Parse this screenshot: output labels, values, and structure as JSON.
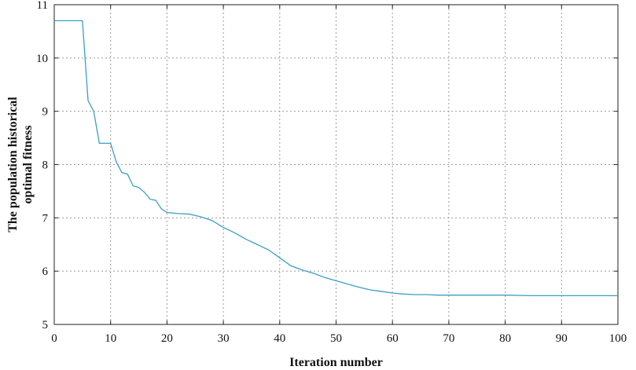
{
  "chart_data": {
    "type": "line",
    "title": "",
    "xlabel": "Iteration number",
    "ylabel_lines": [
      "The population historical",
      "optimal fitness"
    ],
    "xlim": [
      0,
      100
    ],
    "ylim": [
      5,
      11
    ],
    "xticks": [
      0,
      10,
      20,
      30,
      40,
      50,
      60,
      70,
      80,
      90,
      100
    ],
    "yticks": [
      5,
      6,
      7,
      8,
      9,
      10,
      11
    ],
    "grid": true,
    "line_color": "#3a9fc4",
    "series": [
      {
        "x": [
          0,
          1,
          2,
          3,
          4,
          5,
          6,
          6.5,
          7,
          7.5,
          8,
          8.5,
          9,
          9.5,
          10,
          11,
          12,
          13,
          14,
          15,
          16,
          17,
          18,
          19,
          20,
          22,
          24,
          26,
          28,
          30,
          32,
          34,
          36,
          38,
          40,
          42,
          44,
          46,
          48,
          50,
          52,
          54,
          56,
          58,
          60,
          62,
          64,
          66,
          68,
          70,
          75,
          80,
          85,
          90,
          95,
          100
        ],
        "y": [
          10.7,
          10.7,
          10.7,
          10.7,
          10.7,
          10.7,
          9.2,
          9.1,
          9.0,
          8.7,
          8.4,
          8.4,
          8.4,
          8.4,
          8.4,
          8.05,
          7.85,
          7.82,
          7.6,
          7.57,
          7.48,
          7.35,
          7.33,
          7.17,
          7.1,
          7.08,
          7.07,
          7.02,
          6.95,
          6.82,
          6.72,
          6.6,
          6.5,
          6.4,
          6.25,
          6.1,
          6.02,
          5.96,
          5.88,
          5.82,
          5.76,
          5.7,
          5.65,
          5.62,
          5.59,
          5.57,
          5.56,
          5.56,
          5.55,
          5.55,
          5.55,
          5.55,
          5.54,
          5.54,
          5.54,
          5.54
        ]
      }
    ]
  }
}
